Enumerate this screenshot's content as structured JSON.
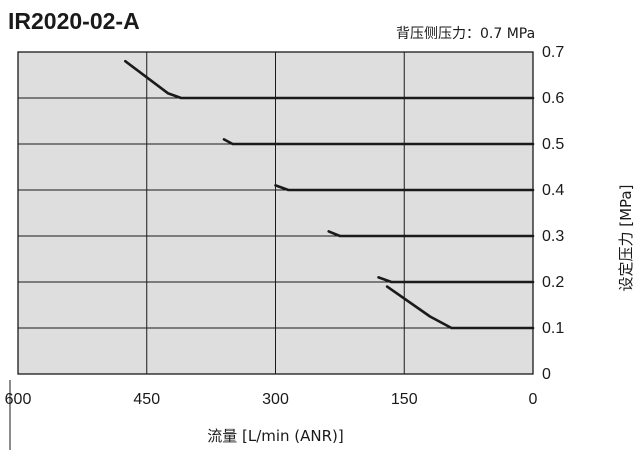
{
  "chart_data": {
    "type": "line",
    "title": "IR2020-02-A",
    "annotation": "背压侧压力：0.7 MPa",
    "xlabel": "流量 [L/min (ANR)]",
    "ylabel": "设定压力 [MPa]",
    "x_reversed": true,
    "xlim": [
      600,
      0
    ],
    "ylim": [
      0,
      0.7
    ],
    "x_ticks": [
      600,
      450,
      300,
      150,
      0
    ],
    "y_ticks": [
      0,
      0.1,
      0.2,
      0.3,
      0.4,
      0.5,
      0.6,
      0.7
    ],
    "x_tick_labels": [
      "600",
      "450",
      "300",
      "150",
      "0"
    ],
    "y_tick_labels": [
      "0",
      "0.1",
      "0.2",
      "0.3",
      "0.4",
      "0.5",
      "0.6",
      "0.7"
    ],
    "grid": true,
    "series": [
      {
        "setting": 0.6,
        "points": [
          [
            0,
            0.6
          ],
          [
            410,
            0.6
          ],
          [
            425,
            0.61
          ],
          [
            475,
            0.68
          ]
        ]
      },
      {
        "setting": 0.5,
        "points": [
          [
            0,
            0.5
          ],
          [
            350,
            0.5
          ],
          [
            360,
            0.51
          ]
        ]
      },
      {
        "setting": 0.4,
        "points": [
          [
            0,
            0.4
          ],
          [
            285,
            0.4
          ],
          [
            300,
            0.41
          ]
        ]
      },
      {
        "setting": 0.3,
        "points": [
          [
            0,
            0.3
          ],
          [
            225,
            0.3
          ],
          [
            238,
            0.31
          ]
        ]
      },
      {
        "setting": 0.2,
        "points": [
          [
            0,
            0.2
          ],
          [
            165,
            0.2
          ],
          [
            180,
            0.21
          ]
        ]
      },
      {
        "setting": 0.1,
        "points": [
          [
            0,
            0.1
          ],
          [
            95,
            0.1
          ],
          [
            120,
            0.125
          ],
          [
            170,
            0.19
          ]
        ]
      }
    ]
  }
}
